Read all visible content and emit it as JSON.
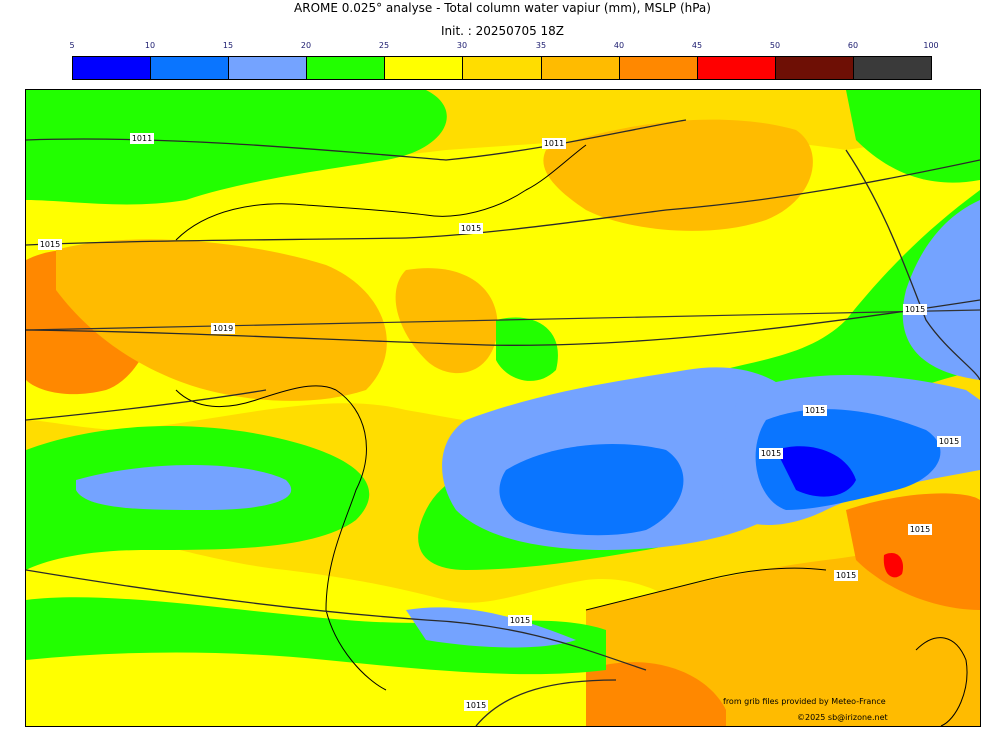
{
  "title": "AROME 0.025° analyse - Total column water vapiur (mm), MSLP (hPa)",
  "subtitle": "Init. : 20250705 18Z",
  "legend": {
    "ticks": [
      "5",
      "10",
      "15",
      "20",
      "25",
      "30",
      "35",
      "40",
      "45",
      "50",
      "60",
      "100"
    ],
    "colors": [
      "#0000ff",
      "#0a75ff",
      "#74a3ff",
      "#22ff00",
      "#ffff00",
      "#ffdd00",
      "#ffbb00",
      "#ff8800",
      "#ff0000",
      "#6e0f05",
      "#3a3a3a"
    ]
  },
  "isobar_labels": [
    "1011",
    "1011",
    "1015",
    "1015",
    "1015",
    "1019",
    "1015",
    "1015",
    "1015",
    "1015",
    "1015",
    "1015",
    "1015",
    "1015"
  ],
  "credits": {
    "source": "from grib files provided by Meteo-France",
    "copyright": "©2025 sb@irizone.net"
  }
}
